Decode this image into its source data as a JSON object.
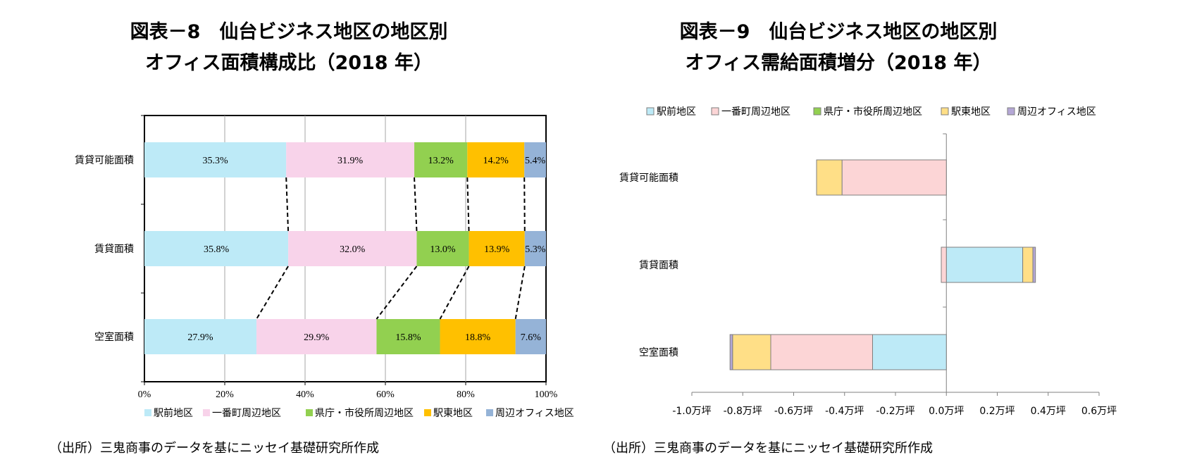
{
  "chart_data": [
    {
      "type": "bar",
      "orientation": "horizontal",
      "stacked": "percent",
      "title_lines": [
        "図表－8　仙台ビジネス地区の地区別",
        "オフィス面積構成比（2018 年）"
      ],
      "categories": [
        "賃貸可能面積",
        "賃貸面積",
        "空室面積"
      ],
      "series": [
        {
          "name": "駅前地区",
          "values": [
            35.3,
            35.8,
            27.9
          ],
          "labels": [
            "35.3%",
            "35.8%",
            "27.9%"
          ],
          "color": "#bdeaf7"
        },
        {
          "name": "一番町周辺地区",
          "values": [
            31.9,
            32.0,
            29.9
          ],
          "labels": [
            "31.9%",
            "32.0%",
            "29.9%"
          ],
          "color": "#f8d3ea"
        },
        {
          "name": "県庁・市役所周辺地区",
          "values": [
            13.2,
            13.0,
            15.8
          ],
          "labels": [
            "13.2%",
            "13.0%",
            "15.8%"
          ],
          "color": "#92d050"
        },
        {
          "name": "駅東地区",
          "values": [
            14.2,
            13.9,
            18.8
          ],
          "labels": [
            "14.2%",
            "13.9%",
            "18.8%"
          ],
          "color": "#ffc000"
        },
        {
          "name": "周辺オフィス地区",
          "values": [
            5.4,
            5.3,
            7.6
          ],
          "labels": [
            "5.4%",
            "5.3%",
            "7.6%"
          ],
          "color": "#95b3d7"
        }
      ],
      "x_ticks": [
        "0%",
        "20%",
        "40%",
        "60%",
        "80%",
        "100%"
      ],
      "xlim": [
        0,
        100
      ],
      "grid": "vertical",
      "legend_position": "bottom",
      "series_lines": "dashed"
    },
    {
      "type": "bar",
      "orientation": "horizontal",
      "stacked": true,
      "title_lines": [
        "図表－9　仙台ビジネス地区の地区別",
        "オフィス需給面積増分（2018 年）"
      ],
      "categories": [
        "賃貸可能面積",
        "賃貸面積",
        "空室面積"
      ],
      "series": [
        {
          "name": "駅前地区",
          "values": [
            0.0,
            0.3,
            -0.29
          ],
          "color": "#bdeaf7"
        },
        {
          "name": "一番町周辺地区",
          "values": [
            -0.41,
            -0.02,
            -0.4
          ],
          "color": "#fcd5d6"
        },
        {
          "name": "県庁・市役所周辺地区",
          "values": [
            0.0,
            0.0,
            0.0
          ],
          "color": "#92d050"
        },
        {
          "name": "駅東地区",
          "values": [
            -0.1,
            0.04,
            -0.15
          ],
          "color": "#ffdf87"
        },
        {
          "name": "周辺オフィス地区",
          "values": [
            0.0,
            0.01,
            -0.01
          ],
          "color": "#b4a7d6"
        }
      ],
      "x_ticks": [
        "-1.0万坪",
        "-0.8万坪",
        "-0.6万坪",
        "-0.4万坪",
        "-0.2万坪",
        "0.0万坪",
        "0.2万坪",
        "0.4万坪",
        "0.6万坪"
      ],
      "xlim": [
        -1.0,
        0.6
      ],
      "grid": false,
      "legend_position": "top"
    }
  ],
  "source_left": "（出所）三鬼商事のデータを基にニッセイ基礎研究所作成",
  "source_right": "（出所）三鬼商事のデータを基にニッセイ基礎研究所作成"
}
